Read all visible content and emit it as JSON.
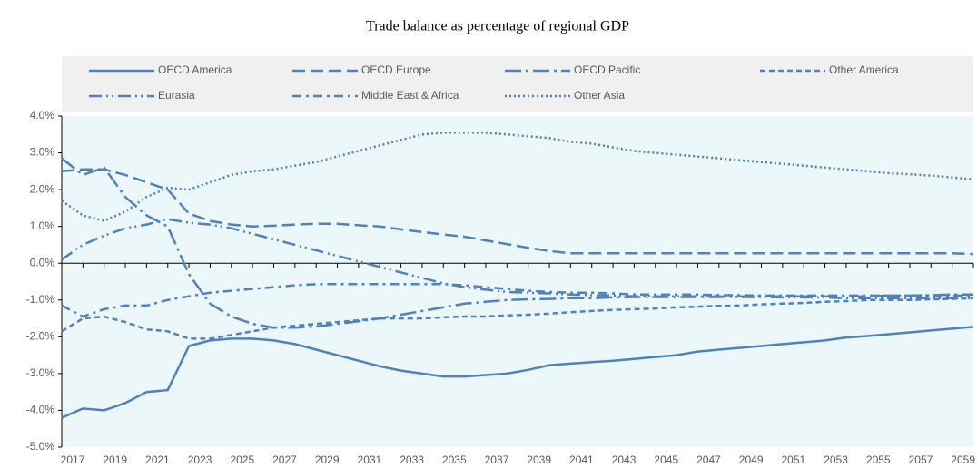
{
  "chart_data": {
    "type": "line",
    "title": "Trade balance as percentage of regional GDP",
    "categories": [
      "2017",
      null,
      "2019",
      null,
      "2021",
      null,
      "2023",
      null,
      "2025",
      null,
      "2027",
      null,
      "2029",
      null,
      "2031",
      null,
      "2033",
      null,
      "2035",
      null,
      "2037",
      null,
      "2039",
      null,
      "2041",
      null,
      "2043",
      null,
      "2045",
      null,
      "2047",
      null,
      "2049",
      null,
      "2051",
      null,
      "2053",
      null,
      "2055",
      null,
      "2057",
      null,
      "2059",
      null
    ],
    "ylim": [
      -5,
      4
    ],
    "yticks": [
      {
        "value": -5,
        "label": "-5.0%"
      },
      {
        "value": -4,
        "label": "-4.0%"
      },
      {
        "value": -3,
        "label": "-3.0%"
      },
      {
        "value": -2,
        "label": "-2.0%"
      },
      {
        "value": -1,
        "label": "-1.0%"
      },
      {
        "value": 0,
        "label": "0.0%"
      },
      {
        "value": 1,
        "label": "1.0%"
      },
      {
        "value": 2,
        "label": "2.0%"
      },
      {
        "value": 3,
        "label": "3.0%"
      },
      {
        "value": 4,
        "label": "4.0%"
      }
    ],
    "grid": false,
    "legend": "top",
    "series": [
      {
        "name": "OECD America",
        "color": "#4f81bd",
        "dash": "solid",
        "values": [
          -4.2,
          -3.95,
          -4.0,
          -3.8,
          -3.5,
          -3.45,
          -2.25,
          -2.1,
          -2.05,
          -2.05,
          -2.1,
          -2.2,
          -2.35,
          -2.5,
          -2.65,
          -2.8,
          -2.92,
          -3.0,
          -3.08,
          -3.08,
          -3.04,
          -3.0,
          -2.9,
          -2.77,
          -2.73,
          -2.69,
          -2.65,
          -2.6,
          -2.55,
          -2.5,
          -2.4,
          -2.35,
          -2.3,
          -2.25,
          -2.2,
          -2.15,
          -2.1,
          -2.02,
          -1.98,
          -1.93,
          -1.88,
          -1.83,
          -1.78,
          -1.73
        ]
      },
      {
        "name": "OECD Europe",
        "color": "#4f81bd",
        "dash": "dashed",
        "values": [
          2.5,
          2.55,
          2.55,
          2.4,
          2.2,
          2.0,
          1.35,
          1.15,
          1.05,
          1.0,
          1.02,
          1.05,
          1.07,
          1.07,
          1.03,
          1.0,
          0.92,
          0.85,
          0.78,
          0.72,
          0.62,
          0.52,
          0.42,
          0.33,
          0.27,
          0.27,
          0.27,
          0.27,
          0.27,
          0.27,
          0.27,
          0.27,
          0.27,
          0.27,
          0.27,
          0.27,
          0.27,
          0.27,
          0.27,
          0.27,
          0.27,
          0.27,
          0.27,
          0.25
        ]
      },
      {
        "name": "OECD Pacific",
        "color": "#4f81bd",
        "dash": "longdashdot",
        "values": [
          2.85,
          2.4,
          2.6,
          1.8,
          1.3,
          1.0,
          -0.3,
          -1.1,
          -1.45,
          -1.65,
          -1.75,
          -1.75,
          -1.72,
          -1.65,
          -1.58,
          -1.5,
          -1.4,
          -1.3,
          -1.2,
          -1.1,
          -1.05,
          -1.0,
          -0.98,
          -0.97,
          -0.95,
          -0.95,
          -0.93,
          -0.92,
          -0.92,
          -0.92,
          -0.92,
          -0.92,
          -0.9,
          -0.9,
          -0.9,
          -0.9,
          -0.9,
          -0.9,
          -0.9,
          -0.88,
          -0.88,
          -0.87,
          -0.85,
          -0.85
        ]
      },
      {
        "name": "Other America",
        "color": "#4f81bd",
        "dash": "shortdash",
        "values": [
          -1.85,
          -1.5,
          -1.45,
          -1.6,
          -1.8,
          -1.85,
          -2.05,
          -2.05,
          -1.95,
          -1.85,
          -1.75,
          -1.7,
          -1.65,
          -1.6,
          -1.55,
          -1.5,
          -1.5,
          -1.5,
          -1.47,
          -1.45,
          -1.45,
          -1.42,
          -1.4,
          -1.37,
          -1.33,
          -1.3,
          -1.27,
          -1.25,
          -1.23,
          -1.2,
          -1.18,
          -1.16,
          -1.15,
          -1.12,
          -1.1,
          -1.08,
          -1.05,
          -1.03,
          -1.0,
          -1.0,
          -1.0,
          -0.98,
          -0.97,
          -0.95
        ]
      },
      {
        "name": "Eurasia",
        "color": "#4f81bd",
        "dash": "dashdotdot",
        "values": [
          0.1,
          0.5,
          0.75,
          0.95,
          1.05,
          1.2,
          1.1,
          1.05,
          0.95,
          0.8,
          0.65,
          0.5,
          0.35,
          0.2,
          0.05,
          -0.1,
          -0.25,
          -0.4,
          -0.55,
          -0.65,
          -0.72,
          -0.78,
          -0.8,
          -0.82,
          -0.85,
          -0.87,
          -0.88,
          -0.9,
          -0.9,
          -0.9,
          -0.9,
          -0.9,
          -0.92,
          -0.92,
          -0.93,
          -0.93,
          -0.93,
          -0.95,
          -0.95,
          -0.95,
          -0.95,
          -0.95,
          -0.95,
          -0.95
        ]
      },
      {
        "name": "Middle East & Africa",
        "color": "#4f81bd",
        "dash": "dashdot",
        "values": [
          -1.15,
          -1.45,
          -1.25,
          -1.15,
          -1.15,
          -1.0,
          -0.9,
          -0.8,
          -0.75,
          -0.7,
          -0.65,
          -0.6,
          -0.57,
          -0.57,
          -0.57,
          -0.57,
          -0.57,
          -0.57,
          -0.57,
          -0.6,
          -0.65,
          -0.7,
          -0.75,
          -0.78,
          -0.8,
          -0.8,
          -0.82,
          -0.85,
          -0.85,
          -0.85,
          -0.85,
          -0.87,
          -0.87,
          -0.88,
          -0.88,
          -0.88,
          -0.88,
          -0.88,
          -0.88,
          -0.88,
          -0.88,
          -0.88,
          -0.88,
          -0.88
        ]
      },
      {
        "name": "Other Asia",
        "color": "#4f81bd",
        "dash": "dotted",
        "values": [
          1.7,
          1.3,
          1.15,
          1.4,
          1.8,
          2.05,
          2.0,
          2.2,
          2.4,
          2.5,
          2.55,
          2.65,
          2.75,
          2.9,
          3.05,
          3.2,
          3.35,
          3.5,
          3.55,
          3.55,
          3.55,
          3.5,
          3.45,
          3.4,
          3.3,
          3.25,
          3.15,
          3.05,
          3.0,
          2.95,
          2.9,
          2.85,
          2.8,
          2.75,
          2.7,
          2.65,
          2.6,
          2.55,
          2.5,
          2.45,
          2.42,
          2.38,
          2.33,
          2.28
        ]
      }
    ]
  }
}
